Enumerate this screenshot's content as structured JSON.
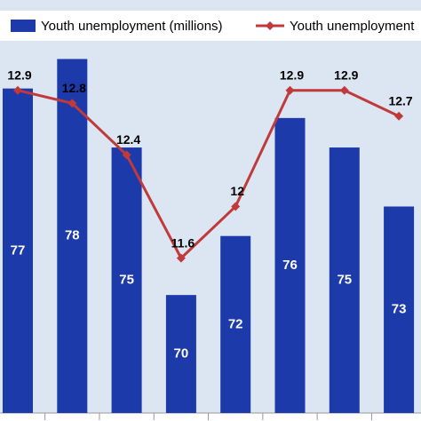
{
  "chart_data": {
    "type": "bar-line",
    "categories": [
      null,
      null,
      null,
      null,
      null,
      null,
      null,
      null
    ],
    "series": [
      {
        "name": "Youth unemployment (millions)",
        "color": "#1c3aa9",
        "values": [
          77,
          78,
          75,
          70,
          72,
          76,
          75,
          73
        ]
      },
      {
        "name": "Youth unemployment",
        "color": "#c0393b",
        "axis": "y2",
        "values": [
          12.9,
          12.8,
          12.4,
          11.6,
          12,
          12.9,
          12.9,
          12.7
        ]
      }
    ],
    "ylim": [
      66,
      80
    ],
    "y2lim": [
      10.4,
      13.6
    ]
  }
}
